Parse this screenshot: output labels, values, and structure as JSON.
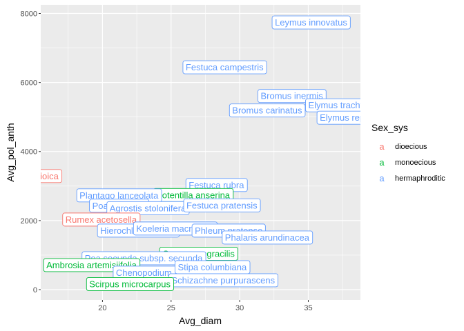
{
  "chart_data": {
    "type": "scatter",
    "geom": "label",
    "xlabel": "Avg_diam",
    "ylabel": "Avg_pol_anth",
    "xlim": [
      15.5,
      38.8
    ],
    "ylim": [
      -300,
      8250
    ],
    "x_ticks": [
      20,
      25,
      30,
      35
    ],
    "y_ticks": [
      0,
      2000,
      4000,
      6000,
      8000
    ],
    "grid": true,
    "legend": {
      "title": "Sex_sys",
      "position": "right",
      "key_glyph": "a",
      "items": [
        {
          "name": "dioecious",
          "color": "#F8766D"
        },
        {
          "name": "monoecious",
          "color": "#00BA38"
        },
        {
          "name": "hermaphroditic",
          "color": "#619CFF"
        }
      ]
    },
    "colors": {
      "dioecious": "#F8766D",
      "monoecious": "#00BA38",
      "hermaphroditic": "#619CFF"
    },
    "points": [
      {
        "label": "Leymus innovatus",
        "x": 35.2,
        "y": 7750,
        "group": "hermaphroditic"
      },
      {
        "label": "Festuca campestris",
        "x": 28.9,
        "y": 6450,
        "group": "hermaphroditic"
      },
      {
        "label": "Bromus inermis",
        "x": 33.8,
        "y": 5620,
        "group": "hermaphroditic"
      },
      {
        "label": "Elymus trachycaulus",
        "x": 38.0,
        "y": 5350,
        "group": "hermaphroditic"
      },
      {
        "label": "Bromus carinatus",
        "x": 32.0,
        "y": 5200,
        "group": "hermaphroditic"
      },
      {
        "label": "Elymus repens",
        "x": 38.0,
        "y": 4990,
        "group": "hermaphroditic"
      },
      {
        "label": "Urtica dioica",
        "x": 15.0,
        "y": 3300,
        "group": "dioecious"
      },
      {
        "label": "Festuca rubra",
        "x": 28.3,
        "y": 3040,
        "group": "hermaphroditic"
      },
      {
        "label": "Potentilla anserina",
        "x": 26.6,
        "y": 2750,
        "group": "monoecious"
      },
      {
        "label": "Plantago lanceolata",
        "x": 21.2,
        "y": 2740,
        "group": "hermaphroditic"
      },
      {
        "label": "Poa juncifolia",
        "x": 21.2,
        "y": 2440,
        "group": "hermaphroditic"
      },
      {
        "label": "Agrostis stolonifera",
        "x": 23.3,
        "y": 2370,
        "group": "hermaphroditic"
      },
      {
        "label": "Festuca pratensis",
        "x": 28.7,
        "y": 2450,
        "group": "hermaphroditic"
      },
      {
        "label": "Rumex acetosella",
        "x": 19.9,
        "y": 2040,
        "group": "dioecious"
      },
      {
        "label": "Hierochloe odorata",
        "x": 22.6,
        "y": 1720,
        "group": "hermaphroditic"
      },
      {
        "label": "Koeleria macrantha",
        "x": 25.3,
        "y": 1780,
        "group": "hermaphroditic"
      },
      {
        "label": "Phleum pratense",
        "x": 29.2,
        "y": 1720,
        "group": "hermaphroditic"
      },
      {
        "label": "Phalaris arundinacea",
        "x": 32.0,
        "y": 1520,
        "group": "hermaphroditic"
      },
      {
        "label": "Carex praegracilis",
        "x": 27.0,
        "y": 1050,
        "group": "monoecious"
      },
      {
        "label": "Poa secunda subsp. secunda",
        "x": 23.0,
        "y": 920,
        "group": "hermaphroditic"
      },
      {
        "label": "Ambrosia artemisiifolia",
        "x": 19.2,
        "y": 720,
        "group": "monoecious"
      },
      {
        "label": "Chenopodium album",
        "x": 24.0,
        "y": 500,
        "group": "hermaphroditic"
      },
      {
        "label": "Stipa columbiana",
        "x": 28.0,
        "y": 660,
        "group": "hermaphroditic"
      },
      {
        "label": "Schizachne purpurascens",
        "x": 28.8,
        "y": 280,
        "group": "hermaphroditic"
      },
      {
        "label": "Scirpus microcarpus",
        "x": 22.0,
        "y": 170,
        "group": "monoecious"
      }
    ]
  }
}
